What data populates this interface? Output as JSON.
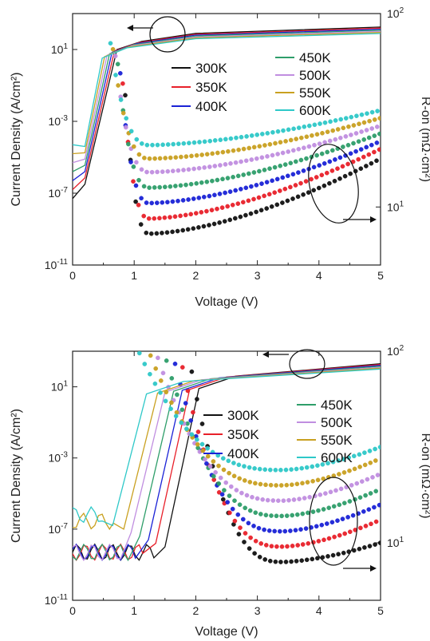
{
  "chart_data": [
    {
      "type": "line",
      "panel": "top",
      "xlabel": "Voltage (V)",
      "ylabel": "Current Density (A/cm²)",
      "y2label": "R-on (mΩ·cm²)",
      "xlim": [
        0,
        5
      ],
      "ylim_log": [
        -11,
        3
      ],
      "y2lim_log": [
        0.7,
        2
      ],
      "x_ticks": [
        "0",
        "1",
        "2",
        "3",
        "4",
        "5"
      ],
      "y_ticks": [
        {
          "base": "10",
          "exp": "1"
        },
        {
          "base": "10",
          "exp": "-3"
        },
        {
          "base": "10",
          "exp": "-7"
        },
        {
          "base": "10",
          "exp": "-11"
        }
      ],
      "y2_ticks": [
        {
          "base": "10",
          "exp": "2"
        },
        {
          "base": "10",
          "exp": "1"
        }
      ],
      "legend": [
        {
          "label": "300K",
          "color": "#111111"
        },
        {
          "label": "350K",
          "color": "#e8202a"
        },
        {
          "label": "400K",
          "color": "#1a22d6"
        },
        {
          "label": "450K",
          "color": "#2e9e6a"
        },
        {
          "label": "500K",
          "color": "#c08ee0"
        },
        {
          "label": "550K",
          "color": "#c9a020"
        },
        {
          "label": "600K",
          "color": "#2ec8c8"
        }
      ],
      "series": [
        {
          "name": "300K",
          "von": 0.72,
          "jmin_log": -10.0,
          "rmin_log": 0.862,
          "rend_log": 1.25
        },
        {
          "name": "350K",
          "von": 0.68,
          "jmin_log": -9.5,
          "rmin_log": 0.94,
          "rend_log": 1.3
        },
        {
          "name": "400K",
          "von": 0.64,
          "jmin_log": -8.8,
          "rmin_log": 1.02,
          "rend_log": 1.34
        },
        {
          "name": "450K",
          "von": 0.6,
          "jmin_log": -8.1,
          "rmin_log": 1.1,
          "rend_log": 1.38
        },
        {
          "name": "500K",
          "von": 0.56,
          "jmin_log": -7.4,
          "rmin_log": 1.18,
          "rend_log": 1.42
        },
        {
          "name": "550K",
          "von": 0.52,
          "jmin_log": -6.9,
          "rmin_log": 1.25,
          "rend_log": 1.46
        },
        {
          "name": "600K",
          "von": 0.48,
          "jmin_log": -6.4,
          "rmin_log": 1.32,
          "rend_log": 1.5
        }
      ]
    },
    {
      "type": "line",
      "panel": "bottom",
      "xlabel": "Voltage (V)",
      "ylabel": "Current Density (A/cm²)",
      "y2label": "R-on (mΩ·cm²)",
      "xlim": [
        0,
        5
      ],
      "ylim_log": [
        -11,
        3
      ],
      "y2lim_log": [
        0.7,
        2
      ],
      "x_ticks": [
        "0",
        "1",
        "2",
        "3",
        "4",
        "5"
      ],
      "y_ticks": [
        {
          "base": "10",
          "exp": "1"
        },
        {
          "base": "10",
          "exp": "-3"
        },
        {
          "base": "10",
          "exp": "-7"
        },
        {
          "base": "10",
          "exp": "-11"
        }
      ],
      "y2_ticks": [
        {
          "base": "10",
          "exp": "2"
        },
        {
          "base": "10",
          "exp": "1"
        }
      ],
      "legend": [
        {
          "label": "300K",
          "color": "#111111"
        },
        {
          "label": "350K",
          "color": "#e8202a"
        },
        {
          "label": "400K",
          "color": "#1a22d6"
        },
        {
          "label": "450K",
          "color": "#2e9e6a"
        },
        {
          "label": "500K",
          "color": "#c08ee0"
        },
        {
          "label": "550K",
          "color": "#c9a020"
        },
        {
          "label": "600K",
          "color": "#2ec8c8"
        }
      ],
      "series": [
        {
          "name": "300K",
          "von": 2.05,
          "jmin_log": -9.0,
          "rmin_log": 0.9,
          "rend_log": 1.0
        },
        {
          "name": "350K",
          "von": 1.9,
          "jmin_log": -8.5,
          "rmin_log": 0.98,
          "rend_log": 1.12
        },
        {
          "name": "400K",
          "von": 1.78,
          "jmin_log": -7.9,
          "rmin_log": 1.06,
          "rend_log": 1.2
        },
        {
          "name": "450K",
          "von": 1.64,
          "jmin_log": -7.3,
          "rmin_log": 1.14,
          "rend_log": 1.28
        },
        {
          "name": "500K",
          "von": 1.5,
          "jmin_log": -6.7,
          "rmin_log": 1.22,
          "rend_log": 1.36
        },
        {
          "name": "550K",
          "von": 1.38,
          "jmin_log": -6.1,
          "rmin_log": 1.3,
          "rend_log": 1.44
        },
        {
          "name": "600K",
          "von": 1.2,
          "jmin_log": -5.6,
          "rmin_log": 1.38,
          "rend_log": 1.5
        }
      ]
    }
  ]
}
